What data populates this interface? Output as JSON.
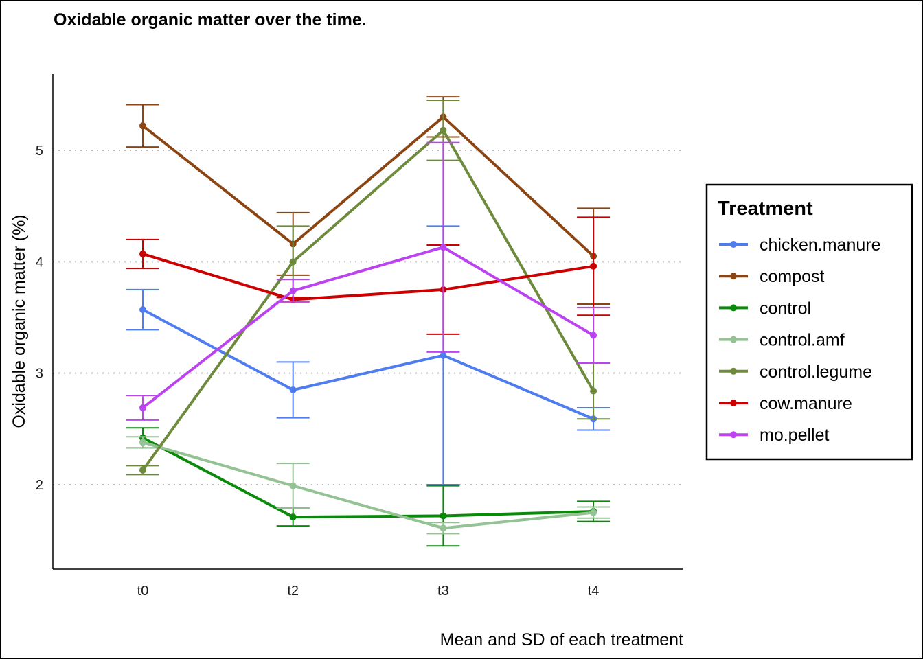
{
  "chart_data": {
    "type": "line",
    "title": "Oxidable organic matter over the time.",
    "xlabel": "Mean and SD of each treatment",
    "ylabel": "Oxidable organic matter (%)",
    "categories": [
      "t0",
      "t2",
      "t3",
      "t4"
    ],
    "ylim": [
      1.25,
      5.7
    ],
    "yticks": [
      2,
      3,
      4,
      5
    ],
    "grid": "horizontal dotted at major y ticks",
    "legend": {
      "title": "Treatment",
      "position": "right"
    },
    "series": [
      {
        "name": "chicken.manure",
        "color": "#4f7df0",
        "mean": [
          3.57,
          2.85,
          3.16,
          2.59
        ],
        "lower": [
          3.39,
          2.6,
          2.0,
          2.49
        ],
        "upper": [
          3.75,
          3.1,
          4.32,
          2.69
        ]
      },
      {
        "name": "compost",
        "color": "#8b4513",
        "mean": [
          5.22,
          4.16,
          5.3,
          4.05
        ],
        "lower": [
          5.03,
          3.88,
          5.12,
          3.62
        ],
        "upper": [
          5.41,
          4.44,
          5.48,
          4.48
        ]
      },
      {
        "name": "control",
        "color": "#0a8a0a",
        "mean": [
          2.42,
          1.71,
          1.72,
          1.76
        ],
        "lower": [
          2.33,
          1.63,
          1.45,
          1.67
        ],
        "upper": [
          2.51,
          1.79,
          1.99,
          1.85
        ]
      },
      {
        "name": "control.amf",
        "color": "#94c294",
        "mean": [
          2.38,
          1.99,
          1.61,
          1.75
        ],
        "lower": [
          2.33,
          1.79,
          1.56,
          1.7
        ],
        "upper": [
          2.43,
          2.19,
          1.66,
          1.8
        ]
      },
      {
        "name": "control.legume",
        "color": "#6e8b3d",
        "mean": [
          2.13,
          4.0,
          5.18,
          2.84
        ],
        "lower": [
          2.09,
          3.68,
          4.91,
          2.59
        ],
        "upper": [
          2.17,
          4.32,
          5.45,
          3.09
        ]
      },
      {
        "name": "cow.manure",
        "color": "#cc0000",
        "mean": [
          4.07,
          3.66,
          3.75,
          3.96
        ],
        "lower": [
          3.94,
          3.64,
          3.35,
          3.52
        ],
        "upper": [
          4.2,
          3.68,
          4.15,
          4.4
        ]
      },
      {
        "name": "mo.pellet",
        "color": "#bb44f0",
        "mean": [
          2.69,
          3.74,
          4.13,
          3.34
        ],
        "lower": [
          2.58,
          3.64,
          3.19,
          3.09
        ],
        "upper": [
          2.8,
          3.84,
          5.07,
          3.59
        ]
      }
    ]
  }
}
